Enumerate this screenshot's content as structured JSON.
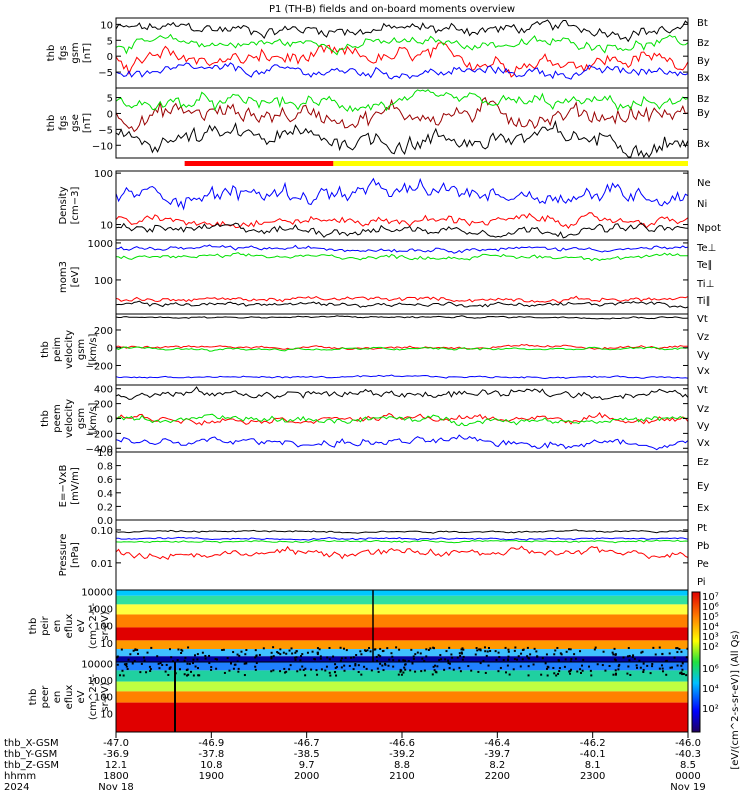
{
  "title": "P1 (TH-B) fields and on-board moments overview",
  "colors": {
    "black": "#000000",
    "red": "#ff0000",
    "green": "#00e000",
    "blue": "#0000ff",
    "darkred": "#990000",
    "yellow": "#ffff00"
  },
  "chart_data": [
    {
      "type": "line",
      "ylabel": [
        "thb",
        "fgs",
        "gsm",
        "[nT]"
      ],
      "ylim": [
        -10,
        12
      ],
      "ticks": [
        10,
        5,
        0,
        -5
      ],
      "tick_labels": [
        "10",
        "5",
        "0",
        "−5"
      ],
      "series": [
        {
          "name": "Bt",
          "color": "#000000",
          "level": 8.5,
          "amp": 1.8
        },
        {
          "name": "Bz",
          "color": "#ff0000",
          "level": -1,
          "amp": 2.5
        },
        {
          "name": "By",
          "color": "#00e000",
          "level": 4,
          "amp": 1.5
        },
        {
          "name": "Bx",
          "color": "#0000ff",
          "level": -5,
          "amp": 1.5
        }
      ]
    },
    {
      "type": "line",
      "ylabel": [
        "thb",
        "fgs",
        "gse",
        "[nT]"
      ],
      "ylim": [
        -14,
        8
      ],
      "ticks": [
        5,
        0,
        -5,
        -10
      ],
      "tick_labels": [
        "5",
        "0",
        "−5",
        "−10"
      ],
      "series": [
        {
          "name": "Bz",
          "color": "#990000",
          "level": 0,
          "amp": 3
        },
        {
          "name": "By",
          "color": "#00e000",
          "level": 3,
          "amp": 2
        },
        {
          "name": "Bx",
          "color": "#000000",
          "level": -8,
          "amp": 3
        }
      ]
    },
    {
      "type": "line",
      "ylabel": [
        "Density",
        "[cm−3]"
      ],
      "scale": "log",
      "ylim": [
        5,
        110
      ],
      "ticks": [
        100,
        10
      ],
      "tick_labels": [
        "100",
        "10"
      ],
      "series": [
        {
          "name": "Ne",
          "color": "#ff0000",
          "level": 12,
          "amp": 0.15
        },
        {
          "name": "Ni",
          "color": "#000000",
          "level": 8,
          "amp": 0.15
        },
        {
          "name": "Npot",
          "color": "#0000ff",
          "level": 40,
          "amp": 0.3
        }
      ]
    },
    {
      "type": "line",
      "ylabel": [
        "mom3",
        "[eV]"
      ],
      "scale": "log",
      "ylim": [
        12,
        1200
      ],
      "ticks": [
        1000,
        100
      ],
      "tick_labels": [
        "1000",
        "100"
      ],
      "series": [
        {
          "name": "Te⊥",
          "color": "#ff0000",
          "level": 30,
          "amp": 0.1
        },
        {
          "name": "Te∥",
          "color": "#000000",
          "level": 22,
          "amp": 0.1
        },
        {
          "name": "Ti⊥",
          "color": "#0000ff",
          "level": 700,
          "amp": 0.1
        },
        {
          "name": "Ti∥",
          "color": "#00e000",
          "level": 420,
          "amp": 0.1
        }
      ]
    },
    {
      "type": "line",
      "ylabel": [
        "thb",
        "peim",
        "velocity",
        "gsm",
        "[km/s]"
      ],
      "ylim": [
        -420,
        380
      ],
      "ticks": [
        200,
        0,
        -200
      ],
      "tick_labels": [
        "200",
        "0",
        "−200"
      ],
      "series": [
        {
          "name": "Vt",
          "color": "#000000",
          "level": 345,
          "amp": 10
        },
        {
          "name": "Vz",
          "color": "#ff0000",
          "level": 5,
          "amp": 15
        },
        {
          "name": "Vy",
          "color": "#00e000",
          "level": -15,
          "amp": 15
        },
        {
          "name": "Vx",
          "color": "#0000ff",
          "level": -330,
          "amp": 10
        }
      ]
    },
    {
      "type": "line",
      "ylabel": [
        "thb",
        "peem",
        "velocity",
        "gsm",
        "[km/s]"
      ],
      "ylim": [
        -450,
        450
      ],
      "ticks": [
        400,
        200,
        0,
        -200,
        -400
      ],
      "tick_labels": [
        "400",
        "200",
        "0",
        "−200",
        "−400"
      ],
      "series": [
        {
          "name": "Vt",
          "color": "#000000",
          "level": 330,
          "amp": 50
        },
        {
          "name": "Vz",
          "color": "#ff0000",
          "level": 0,
          "amp": 40
        },
        {
          "name": "Vy",
          "color": "#00e000",
          "level": -15,
          "amp": 40
        },
        {
          "name": "Vx",
          "color": "#0000ff",
          "level": -320,
          "amp": 50
        }
      ]
    },
    {
      "type": "line",
      "ylabel": [
        "E=−VxB",
        "[mV/m]"
      ],
      "ylim": [
        0,
        1
      ],
      "ticks": [
        1.0,
        0.8,
        0.6,
        0.4,
        0.2,
        0.0
      ],
      "tick_labels": [
        "1.0",
        "0.8",
        "0.6",
        "0.4",
        "0.2",
        "0.0"
      ],
      "series": [
        {
          "name": "Ez",
          "color": "#ff0000"
        },
        {
          "name": "Ey",
          "color": "#00e000"
        },
        {
          "name": "Ex",
          "color": "#0000ff"
        }
      ]
    },
    {
      "type": "line",
      "ylabel": [
        "Pressure",
        "[nPa]"
      ],
      "scale": "log",
      "ylim": [
        0.0015,
        0.2
      ],
      "ticks": [
        0.1,
        0.01
      ],
      "tick_labels": [
        "0.10",
        "0.01"
      ],
      "series": [
        {
          "name": "Pt",
          "color": "#000000",
          "level": 0.09,
          "amp": 0.05
        },
        {
          "name": "Pb",
          "color": "#ff0000",
          "level": 0.02,
          "amp": 0.2
        },
        {
          "name": "Pe",
          "color": "#00e000",
          "level": 0.045,
          "amp": 0.05
        },
        {
          "name": "Pi",
          "color": "#0000ff",
          "level": 0.055,
          "amp": 0.05
        }
      ]
    },
    {
      "type": "heatmap",
      "ylabel": [
        "thb",
        "peir",
        "en",
        "eflux",
        "eV",
        "(cm^2-s-",
        "sr-eV)"
      ],
      "ticks": [
        10000,
        1000,
        100,
        10
      ],
      "tick_labels": [
        "10000",
        "1000",
        "100",
        "10"
      ]
    },
    {
      "type": "heatmap",
      "ylabel": [
        "thb",
        "peer",
        "en",
        "eflux",
        "eV",
        "(cm^2-s-",
        "sr-eV)"
      ],
      "ticks": [
        10000,
        1000,
        100,
        10
      ],
      "tick_labels": [
        "10000",
        "1000",
        "100",
        "10"
      ]
    }
  ],
  "colorbar": {
    "ticks_top": [
      "10⁷",
      "10⁶",
      "10⁵",
      "10⁴",
      "10³",
      "10²"
    ],
    "ticks_bottom": [
      "10⁶",
      "10⁴",
      "10²"
    ],
    "label": "[eV/(cm^2-s-sr-eV)] (All Qs)"
  },
  "x_axis": {
    "rows": [
      {
        "name": "thb_X-GSM",
        "values": [
          "-47.0",
          "-46.9",
          "-46.7",
          "-46.6",
          "-46.4",
          "-46.2",
          "-46.0"
        ]
      },
      {
        "name": "thb_Y-GSM",
        "values": [
          "-36.9",
          "-37.8",
          "-38.5",
          "-39.2",
          "-39.7",
          "-40.1",
          "-40.3"
        ]
      },
      {
        "name": "thb_Z-GSM",
        "values": [
          "12.1",
          "10.8",
          "9.7",
          "8.8",
          "8.2",
          "8.1",
          "8.5"
        ]
      },
      {
        "name": "hhmm",
        "values": [
          "1800",
          "1900",
          "2000",
          "2100",
          "2200",
          "2300",
          "0000"
        ]
      },
      {
        "name": "2024",
        "values": [
          "Nov 18",
          "",
          "",
          "",
          "",
          "",
          "Nov 19"
        ]
      }
    ]
  },
  "mode_bar": {
    "red_range": [
      0.12,
      0.38
    ],
    "yellow_range": [
      0.38,
      1.0
    ]
  }
}
